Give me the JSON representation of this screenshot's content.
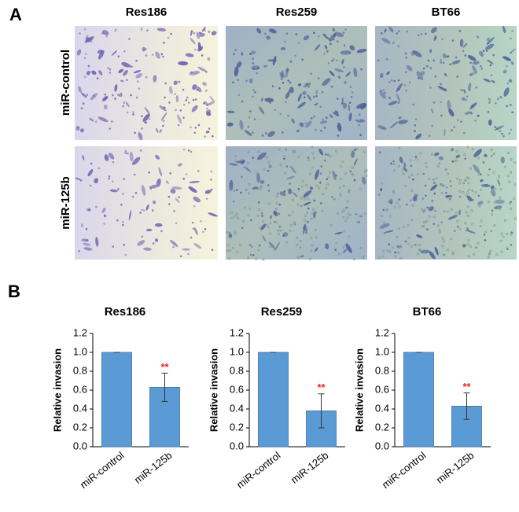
{
  "panel_a": {
    "label": "A",
    "columns": [
      "Res186",
      "Res259",
      "BT66"
    ],
    "rows": [
      "miR-control",
      "miR-125b"
    ]
  },
  "panel_b_label": "B",
  "chart_data": [
    {
      "type": "bar",
      "title": "Res186",
      "y_label": "Relative invasion",
      "categories": [
        "miR-control",
        "miR-125b"
      ],
      "values": [
        1.0,
        0.63
      ],
      "errors": [
        0,
        0.15
      ],
      "significance": [
        null,
        "**"
      ],
      "significance_color": "#e8251f",
      "color": "#5b9bd5",
      "ylim": [
        0,
        1.2
      ],
      "yticks": [
        {
          "value": 0,
          "label": "0.0"
        },
        0.2,
        0.4,
        0.6,
        0.8,
        {
          "value": 1,
          "label": "1.0"
        },
        1.2
      ]
    },
    {
      "type": "bar",
      "title": "Res259",
      "y_label": "Relative invasion",
      "categories": [
        "miR-control",
        "miR-125b"
      ],
      "values": [
        1.0,
        0.38
      ],
      "errors": [
        0,
        0.18
      ],
      "significance": [
        null,
        "**"
      ],
      "significance_color": "#e8251f",
      "color": "#5b9bd5",
      "ylim": [
        0,
        1.2
      ],
      "yticks": [
        {
          "value": 0,
          "label": "0.0"
        },
        0.2,
        0.4,
        0.6,
        0.8,
        {
          "value": 1,
          "label": "1.0"
        },
        1.2
      ]
    },
    {
      "type": "bar",
      "title": "BT66",
      "y_label": "Relative invasion",
      "categories": [
        "miR-control",
        "miR-125b"
      ],
      "values": [
        1.0,
        0.43
      ],
      "errors": [
        0,
        0.14
      ],
      "significance": [
        null,
        "**"
      ],
      "significance_color": "#e8251f",
      "color": "#5b9bd5",
      "ylim": [
        0,
        1.2
      ],
      "yticks": [
        {
          "value": 0,
          "label": "0.0"
        },
        0.2,
        0.4,
        0.6,
        0.8,
        {
          "value": 1,
          "label": "1.0"
        },
        1.2
      ]
    }
  ]
}
